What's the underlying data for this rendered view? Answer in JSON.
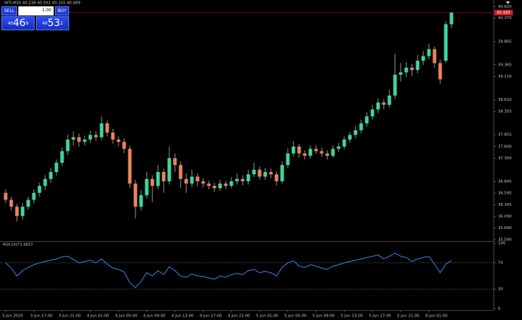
{
  "chart_data": [
    {
      "type": "candlestick",
      "title": "WTI,M30  40.238 40.502 40.155 40.489",
      "trade_panel": {
        "sell": "SELL",
        "lot": "1.00",
        "buy": "BUY",
        "bid": {
          "prefix": "40",
          "big": "46",
          "sup": "9"
        },
        "ask": {
          "prefix": "40",
          "big": "53",
          "sup": "2"
        }
      },
      "colors": {
        "up": "#3fd69a",
        "down": "#e8845a",
        "wick": "#d8d8d8",
        "price_line": "#d01f1f"
      },
      "candles": [
        [
          36.6,
          36.68,
          36.38,
          36.45
        ],
        [
          36.45,
          36.52,
          36.22,
          36.3
        ],
        [
          36.3,
          36.36,
          35.98,
          36.1
        ],
        [
          36.1,
          36.38,
          36.02,
          36.3
        ],
        [
          36.3,
          36.52,
          36.24,
          36.45
        ],
        [
          36.45,
          36.68,
          36.38,
          36.6
        ],
        [
          36.6,
          36.82,
          36.52,
          36.75
        ],
        [
          36.75,
          36.98,
          36.66,
          36.9
        ],
        [
          36.9,
          37.14,
          36.82,
          37.05
        ],
        [
          37.05,
          37.32,
          36.98,
          37.25
        ],
        [
          37.25,
          37.58,
          37.18,
          37.5
        ],
        [
          37.5,
          37.86,
          37.42,
          37.75
        ],
        [
          37.75,
          37.92,
          37.62,
          37.8
        ],
        [
          37.8,
          37.88,
          37.6,
          37.7
        ],
        [
          37.7,
          37.84,
          37.62,
          37.75
        ],
        [
          37.75,
          37.94,
          37.68,
          37.85
        ],
        [
          37.85,
          37.92,
          37.72,
          37.8
        ],
        [
          37.8,
          38.25,
          37.74,
          38.1
        ],
        [
          38.1,
          38.16,
          37.82,
          37.9
        ],
        [
          37.9,
          37.98,
          37.66,
          37.75
        ],
        [
          37.75,
          37.82,
          37.6,
          37.7
        ],
        [
          37.7,
          37.78,
          37.46,
          37.55
        ],
        [
          37.55,
          37.62,
          36.7,
          36.8
        ],
        [
          36.8,
          36.88,
          36.05,
          36.3
        ],
        [
          36.3,
          36.66,
          36.22,
          36.55
        ],
        [
          36.55,
          37.05,
          36.48,
          36.9
        ],
        [
          36.9,
          36.98,
          36.4,
          36.75
        ],
        [
          36.75,
          37.2,
          36.68,
          37.05
        ],
        [
          37.05,
          37.12,
          36.6,
          36.85
        ],
        [
          36.85,
          37.6,
          36.78,
          37.35
        ],
        [
          37.35,
          37.45,
          37.05,
          37.2
        ],
        [
          37.2,
          37.28,
          36.7,
          36.9
        ],
        [
          36.9,
          37.02,
          36.6,
          36.8
        ],
        [
          36.8,
          37.1,
          36.72,
          36.95
        ],
        [
          36.95,
          37.02,
          36.74,
          36.85
        ],
        [
          36.85,
          36.92,
          36.72,
          36.8
        ],
        [
          36.8,
          36.86,
          36.68,
          36.75
        ],
        [
          36.75,
          36.82,
          36.62,
          36.7
        ],
        [
          36.7,
          36.88,
          36.64,
          36.8
        ],
        [
          36.8,
          36.86,
          36.68,
          36.75
        ],
        [
          36.75,
          36.94,
          36.7,
          36.85
        ],
        [
          36.85,
          37.02,
          36.78,
          36.9
        ],
        [
          36.9,
          36.98,
          36.76,
          36.85
        ],
        [
          36.85,
          37.1,
          36.78,
          37.0
        ],
        [
          37.0,
          37.25,
          36.94,
          37.1
        ],
        [
          37.1,
          37.16,
          36.88,
          36.95
        ],
        [
          36.95,
          37.14,
          36.88,
          37.05
        ],
        [
          37.05,
          37.12,
          36.92,
          37.0
        ],
        [
          37.0,
          37.06,
          36.76,
          36.85
        ],
        [
          36.85,
          37.28,
          36.8,
          37.2
        ],
        [
          37.2,
          37.56,
          37.14,
          37.45
        ],
        [
          37.45,
          37.72,
          37.38,
          37.6
        ],
        [
          37.6,
          37.66,
          37.36,
          37.45
        ],
        [
          37.45,
          37.52,
          37.32,
          37.4
        ],
        [
          37.4,
          37.62,
          37.34,
          37.55
        ],
        [
          37.55,
          37.62,
          37.44,
          37.5
        ],
        [
          37.5,
          37.58,
          37.38,
          37.45
        ],
        [
          37.45,
          37.52,
          37.32,
          37.4
        ],
        [
          37.4,
          37.62,
          37.36,
          37.55
        ],
        [
          37.55,
          37.68,
          37.48,
          37.6
        ],
        [
          37.6,
          37.82,
          37.54,
          37.75
        ],
        [
          37.75,
          37.92,
          37.68,
          37.85
        ],
        [
          37.85,
          38.04,
          37.78,
          37.95
        ],
        [
          37.95,
          38.18,
          37.88,
          38.1
        ],
        [
          38.1,
          38.34,
          38.02,
          38.25
        ],
        [
          38.25,
          38.5,
          38.18,
          38.4
        ],
        [
          38.4,
          38.64,
          38.32,
          38.55
        ],
        [
          38.55,
          38.62,
          38.4,
          38.5
        ],
        [
          38.5,
          38.82,
          38.44,
          38.7
        ],
        [
          38.7,
          39.6,
          38.62,
          39.15
        ],
        [
          39.15,
          39.4,
          39.0,
          39.2
        ],
        [
          39.2,
          39.42,
          39.1,
          39.3
        ],
        [
          39.3,
          39.38,
          39.12,
          39.25
        ],
        [
          39.25,
          39.58,
          39.18,
          39.45
        ],
        [
          39.45,
          39.66,
          39.36,
          39.55
        ],
        [
          39.55,
          39.82,
          39.48,
          39.7
        ],
        [
          39.7,
          39.76,
          39.3,
          39.4
        ],
        [
          39.4,
          39.48,
          38.95,
          39.05
        ],
        [
          39.45,
          40.3,
          39.4,
          40.238
        ],
        [
          40.238,
          40.502,
          40.155,
          40.489
        ]
      ],
      "ylim": [
        35.56,
        40.7
      ],
      "yticks": [
        {
          "value": 40.62,
          "label": "40.620"
        },
        {
          "value": 40.37,
          "label": "40.370"
        },
        39.865,
        39.365,
        {
          "value": 39.11,
          "label": "39.110"
        },
        {
          "value": 38.61,
          "label": "38.610"
        },
        38.355,
        37.855,
        {
          "value": 37.6,
          "label": "37.600"
        },
        {
          "value": 37.35,
          "label": "37.350"
        },
        36.845,
        36.595,
        36.345,
        {
          "value": 36.09,
          "label": "36.090"
        },
        {
          "value": 35.84,
          "label": "35.840"
        },
        {
          "value": 35.59,
          "label": "35.590"
        }
      ],
      "xticks": [
        {
          "value": 0,
          "label": "3 Jun 2020"
        },
        {
          "value": 5,
          "label": "3 Jun 17:00"
        },
        {
          "value": 10,
          "label": "3 Jun 21:00"
        },
        {
          "value": 15,
          "label": "4 Jun 01:00"
        },
        {
          "value": 20,
          "label": "4 Jun 05:00"
        },
        {
          "value": 25,
          "label": "4 Jun 09:00"
        },
        {
          "value": 30,
          "label": "4 Jun 13:00"
        },
        {
          "value": 35,
          "label": "4 Jun 17:00"
        },
        {
          "value": 40,
          "label": "4 Jun 21:00"
        },
        {
          "value": 45,
          "label": "5 Jun 01:00"
        },
        {
          "value": 50,
          "label": "5 Jun 05:00"
        },
        {
          "value": 55,
          "label": "5 Jun 09:00"
        },
        {
          "value": 60,
          "label": "5 Jun 13:00"
        },
        {
          "value": 65,
          "label": "5 Jun 17:00"
        },
        {
          "value": 70,
          "label": "5 Jun 21:00"
        },
        {
          "value": 75,
          "label": "8 Jun 01:00"
        }
      ]
    },
    {
      "type": "line",
      "title": "RSI(14)",
      "color": "#2e7fd8",
      "values": [
        70,
        62,
        50,
        58,
        63,
        67,
        70,
        72,
        74,
        76,
        79,
        80,
        75,
        70,
        72,
        74,
        70,
        76,
        68,
        62,
        60,
        56,
        40,
        32,
        42,
        55,
        50,
        58,
        52,
        64,
        58,
        50,
        48,
        53,
        50,
        49,
        47,
        45,
        50,
        48,
        52,
        54,
        52,
        58,
        60,
        55,
        57,
        55,
        50,
        63,
        70,
        73,
        65,
        63,
        67,
        65,
        62,
        60,
        65,
        67,
        70,
        72,
        74,
        76,
        78,
        80,
        82,
        76,
        80,
        85,
        80,
        78,
        72,
        76,
        78,
        80,
        68,
        55,
        68,
        73.4837
      ],
      "ylim": [
        0,
        100
      ],
      "yticks": [
        100,
        70,
        30,
        0
      ]
    }
  ]
}
